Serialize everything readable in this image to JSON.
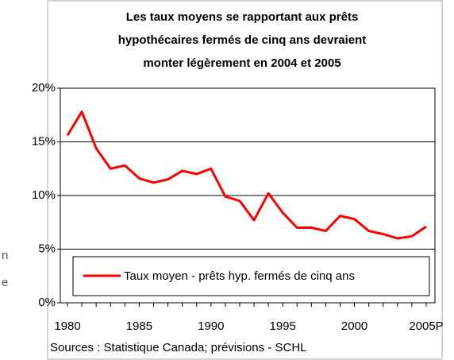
{
  "chart_data": {
    "type": "line",
    "title": [
      "Les taux moyens se rapportant aux prêts",
      "hypothécaires fermés de cinq ans devraient",
      "monter légèrement en  2004 et 2005"
    ],
    "categories": [
      "1980",
      null,
      null,
      null,
      null,
      "1985",
      null,
      null,
      null,
      null,
      "1990",
      null,
      null,
      null,
      null,
      "1995",
      null,
      null,
      null,
      null,
      "2000",
      null,
      null,
      null,
      null,
      "2005P"
    ],
    "series": [
      {
        "name": "Taux moyen - prêts hyp. fermés de cinq ans",
        "color": "#ff0000",
        "values": [
          15.6,
          17.8,
          14.4,
          12.5,
          12.8,
          11.6,
          11.2,
          11.5,
          12.3,
          12.0,
          12.5,
          9.9,
          9.5,
          7.7,
          10.2,
          8.4,
          7.0,
          7.0,
          6.7,
          8.1,
          7.8,
          6.7,
          6.4,
          6.0,
          6.2,
          7.1
        ]
      }
    ],
    "ylim": [
      0,
      20
    ],
    "yticks": [
      {
        "value": 0,
        "label": "0%"
      },
      {
        "value": 5,
        "label": "5%"
      },
      {
        "value": 10,
        "label": "10%"
      },
      {
        "value": 15,
        "label": "15%"
      },
      {
        "value": 20,
        "label": "20%"
      }
    ],
    "grid": true,
    "legend": "bottom",
    "source": "Sources : Statistique Canada; prévisions - SCHL",
    "background_text": [
      "n",
      "e"
    ]
  }
}
